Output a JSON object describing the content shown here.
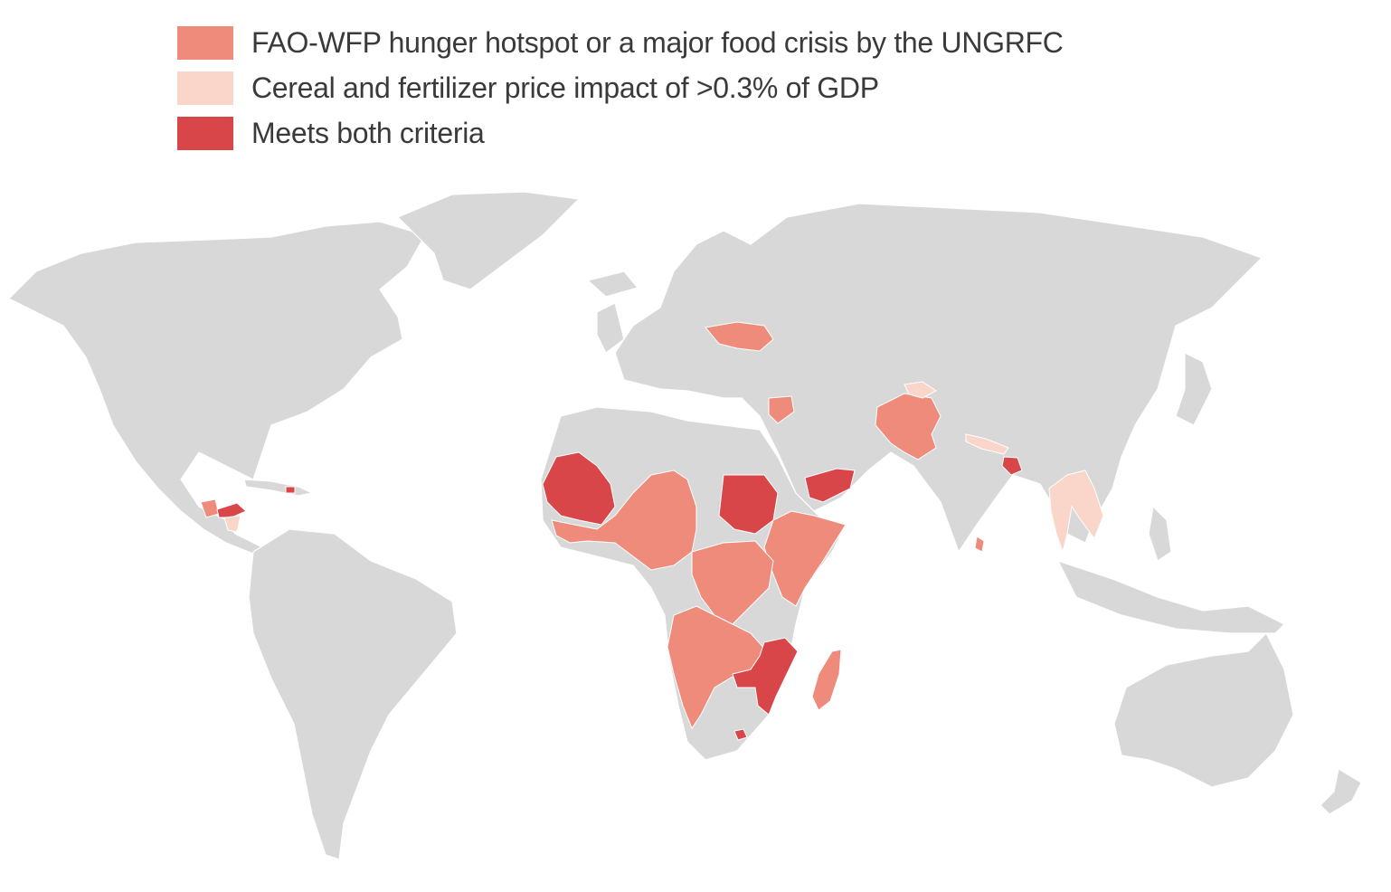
{
  "legend": {
    "items": [
      {
        "label": "FAO-WFP hunger hotspot or a major food crisis by the UNGRFC",
        "category": "hotspot",
        "color": "#ef8b7a"
      },
      {
        "label": "Cereal and fertilizer price impact of >0.3% of GDP",
        "category": "price",
        "color": "#f9d5ca"
      },
      {
        "label": "Meets both criteria",
        "category": "both",
        "color": "#d9464a"
      }
    ]
  },
  "colors": {
    "land": "#d8d8d8",
    "border": "#ffffff",
    "background": "#ffffff"
  }
}
